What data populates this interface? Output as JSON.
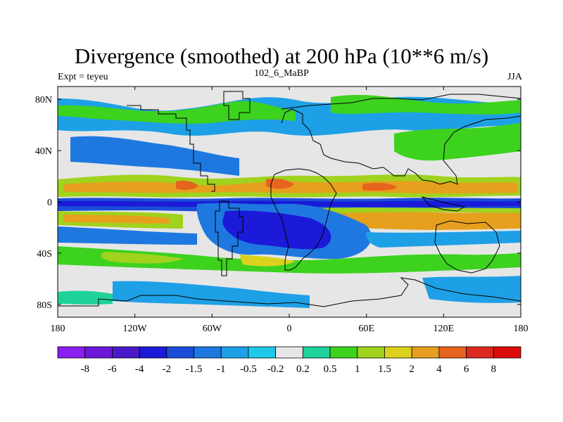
{
  "title": "Divergence (smoothed) at 200 hPa (10**6 m/s)",
  "left_string": "Expt = teyeu",
  "center_string": "102_6_MaBP",
  "right_string": "JJA",
  "chart_data": {
    "type": "heatmap",
    "variable": "Divergence (smoothed)",
    "level_hpa": 200,
    "units": "10**6 m/s",
    "season": "JJA",
    "x_ticks": [
      "180",
      "120W",
      "60W",
      "0",
      "60E",
      "120E",
      "180"
    ],
    "y_ticks": [
      "80N",
      "40N",
      "0",
      "40S",
      "80S"
    ],
    "xlim": [
      -180,
      180
    ],
    "ylim": [
      -90,
      90
    ],
    "colorbar": {
      "levels": [
        "-8",
        "-6",
        "-4",
        "-2",
        "-1.5",
        "-1",
        "-0.5",
        "-0.2",
        "0.2",
        "0.5",
        "1",
        "1.5",
        "2",
        "4",
        "6",
        "8"
      ],
      "colors": [
        "#8a1ff0",
        "#6b18d8",
        "#4a1ac8",
        "#1a1ad8",
        "#1a4ed8",
        "#1e78e0",
        "#1ea0e6",
        "#1ec8e8",
        "#e6e6e6",
        "#1ed29a",
        "#3cd21e",
        "#a0d21e",
        "#dcd21e",
        "#e6a01e",
        "#e6641e",
        "#dc281e",
        "#dc0a0a"
      ]
    }
  }
}
